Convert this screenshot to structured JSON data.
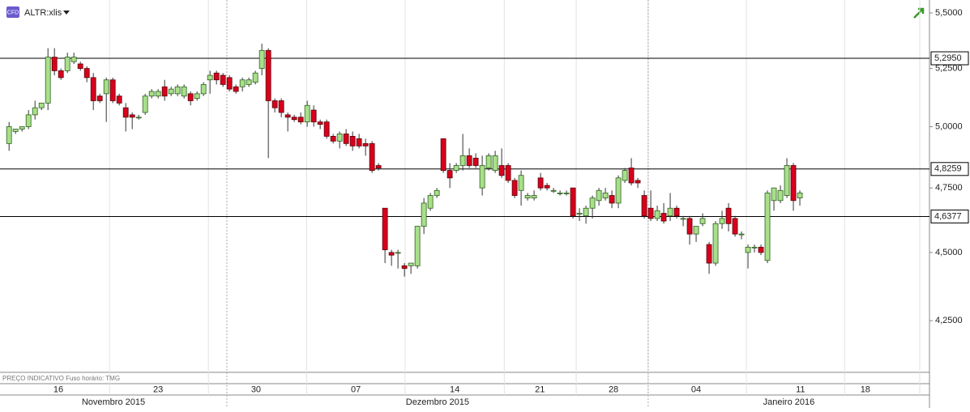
{
  "chart_data": {
    "type": "candlestick",
    "symbol": "ALTR:xlis",
    "badge": "CFD",
    "footnote": "PREÇO INDICATIVO   Fuso horário: TMG",
    "log_scale": true,
    "up_color": "#a8e08a",
    "down_color": "#d8001c",
    "ylim": [
      4.07,
      5.56
    ],
    "yticks": [
      {
        "value": 4.25,
        "label": "4,2500"
      },
      {
        "value": 4.5,
        "label": "4,5000"
      },
      {
        "value": 4.75,
        "label": "4,7500"
      },
      {
        "value": 5.0,
        "label": "5,0000"
      },
      {
        "value": 5.25,
        "label": "5,2500"
      },
      {
        "value": 5.5,
        "label": "5,5000"
      }
    ],
    "levels": [
      {
        "value": 5.295,
        "label": "5,2950"
      },
      {
        "value": 4.8259,
        "label": "4,8259"
      },
      {
        "value": 4.6377,
        "label": "4,6377"
      }
    ],
    "xlim": [
      -1.4,
      142
    ],
    "xticks": [
      {
        "value": 7.6,
        "label": "16"
      },
      {
        "value": 23,
        "label": "23"
      },
      {
        "value": 38.1,
        "label": "30"
      },
      {
        "value": 53.5,
        "label": "07"
      },
      {
        "value": 68.75,
        "label": "14"
      },
      {
        "value": 81.9,
        "label": "21"
      },
      {
        "value": 93.25,
        "label": "28"
      },
      {
        "value": 106,
        "label": "04"
      },
      {
        "value": 122.1,
        "label": "11"
      },
      {
        "value": 132.1,
        "label": "18"
      }
    ],
    "months": [
      "Novembro 2015",
      "Dezembro 2015",
      "Janeiro 2016"
    ],
    "open": [
      4.93,
      4.98,
      4.99,
      5.0,
      5.05,
      5.08,
      5.1,
      5.3,
      5.24,
      5.24,
      5.28,
      5.27,
      5.25,
      5.21,
      5.13,
      5.14,
      5.2,
      5.13,
      5.08,
      5.05,
      5.04,
      5.06,
      5.13,
      5.13,
      5.17,
      5.14,
      5.14,
      5.13,
      5.14,
      5.12,
      5.14,
      5.2,
      5.23,
      5.22,
      5.21,
      5.17,
      5.17,
      5.18,
      5.19,
      5.25,
      5.33,
      5.11,
      5.11,
      5.05,
      5.04,
      5.04,
      5.02,
      5.07,
      5.02,
      5.02,
      4.96,
      4.94,
      4.97,
      4.96,
      4.95,
      4.93,
      4.93,
      4.84,
      4.67,
      4.5,
      4.5,
      4.45,
      4.45,
      4.45,
      4.6,
      4.67,
      4.72,
      4.95,
      4.82,
      4.82,
      4.84,
      4.88,
      4.87,
      4.75,
      4.83,
      4.82,
      4.84,
      4.84,
      4.78,
      4.74,
      4.71,
      4.71,
      4.79,
      4.76,
      4.74,
      4.73,
      4.73,
      4.75,
      4.65,
      4.64,
      4.67,
      4.7,
      4.71,
      4.72,
      4.69,
      4.78,
      4.83,
      4.78,
      4.72,
      4.67,
      4.63,
      4.65,
      4.64,
      4.67,
      4.63,
      4.63,
      4.57,
      4.61,
      4.53,
      4.46,
      4.61,
      4.67,
      4.63,
      4.57,
      4.5,
      4.52,
      4.52,
      4.47,
      4.7,
      4.7,
      4.72,
      4.84,
      4.71
    ],
    "high": [
      5.02,
      4.99,
      5.0,
      5.07,
      5.11,
      5.1,
      5.34,
      5.34,
      5.25,
      5.32,
      5.32,
      5.28,
      5.26,
      5.23,
      5.14,
      5.21,
      5.21,
      5.14,
      5.1,
      5.06,
      5.05,
      5.14,
      5.16,
      5.16,
      5.2,
      5.17,
      5.18,
      5.18,
      5.15,
      5.15,
      5.19,
      5.24,
      5.24,
      5.23,
      5.22,
      5.18,
      5.21,
      5.21,
      5.24,
      5.36,
      5.34,
      5.12,
      5.12,
      5.06,
      5.05,
      5.06,
      5.11,
      5.09,
      5.03,
      5.03,
      4.97,
      4.98,
      4.99,
      4.98,
      4.97,
      4.95,
      4.94,
      4.85,
      4.67,
      4.51,
      4.51,
      4.46,
      4.46,
      4.6,
      4.71,
      4.73,
      4.75,
      4.95,
      4.85,
      4.85,
      4.97,
      4.91,
      4.89,
      4.88,
      4.89,
      4.9,
      4.91,
      4.85,
      4.79,
      4.82,
      4.73,
      4.74,
      4.81,
      4.77,
      4.75,
      4.74,
      4.74,
      4.75,
      4.67,
      4.68,
      4.72,
      4.75,
      4.75,
      4.74,
      4.8,
      4.83,
      4.87,
      4.79,
      4.74,
      4.74,
      4.68,
      4.69,
      4.73,
      4.68,
      4.64,
      4.64,
      4.6,
      4.65,
      4.54,
      4.62,
      4.66,
      4.69,
      4.64,
      4.58,
      4.53,
      4.53,
      4.53,
      4.74,
      4.75,
      4.76,
      4.87,
      4.85,
      4.74
    ],
    "low": [
      4.9,
      4.97,
      4.98,
      4.99,
      5.03,
      5.07,
      5.07,
      5.22,
      5.2,
      5.23,
      5.27,
      5.24,
      5.19,
      5.07,
      5.1,
      5.02,
      5.1,
      5.09,
      4.98,
      4.99,
      5.03,
      5.05,
      5.12,
      5.12,
      5.11,
      5.13,
      5.13,
      5.12,
      5.09,
      5.11,
      5.13,
      5.14,
      5.18,
      5.17,
      5.15,
      5.14,
      5.15,
      5.17,
      5.18,
      5.22,
      4.87,
      5.06,
      5.04,
      4.98,
      5.02,
      5.01,
      5.0,
      5.0,
      4.99,
      4.95,
      4.93,
      4.91,
      4.92,
      4.9,
      4.91,
      4.88,
      4.81,
      4.82,
      4.46,
      4.45,
      4.44,
      4.41,
      4.42,
      4.44,
      4.57,
      4.66,
      4.71,
      4.81,
      4.75,
      4.81,
      4.82,
      4.83,
      4.83,
      4.72,
      4.82,
      4.81,
      4.79,
      4.77,
      4.71,
      4.68,
      4.7,
      4.7,
      4.74,
      4.74,
      4.73,
      4.72,
      4.72,
      4.63,
      4.62,
      4.61,
      4.63,
      4.68,
      4.7,
      4.67,
      4.67,
      4.77,
      4.76,
      4.75,
      4.63,
      4.62,
      4.62,
      4.61,
      4.62,
      4.63,
      4.6,
      4.53,
      4.54,
      4.6,
      4.42,
      4.45,
      4.59,
      4.58,
      4.56,
      4.55,
      4.44,
      4.5,
      4.49,
      4.46,
      4.66,
      4.69,
      4.71,
      4.66,
      4.68
    ],
    "close": [
      5.0,
      4.99,
      5.0,
      5.05,
      5.08,
      5.1,
      5.3,
      5.24,
      5.21,
      5.3,
      5.3,
      5.25,
      5.21,
      5.11,
      5.11,
      5.2,
      5.11,
      5.1,
      5.04,
      5.04,
      5.04,
      5.13,
      5.15,
      5.15,
      5.13,
      5.16,
      5.17,
      5.17,
      5.11,
      5.14,
      5.18,
      5.22,
      5.2,
      5.18,
      5.16,
      5.15,
      5.2,
      5.2,
      5.23,
      5.33,
      5.11,
      5.08,
      5.06,
      5.04,
      5.03,
      5.02,
      5.09,
      5.02,
      5.01,
      4.96,
      4.94,
      4.97,
      4.93,
      4.92,
      4.92,
      4.92,
      4.82,
      4.83,
      4.51,
      4.49,
      4.5,
      4.44,
      4.46,
      4.6,
      4.69,
      4.72,
      4.74,
      4.82,
      4.79,
      4.84,
      4.88,
      4.84,
      4.84,
      4.84,
      4.88,
      4.88,
      4.8,
      4.78,
      4.72,
      4.8,
      4.72,
      4.72,
      4.75,
      4.75,
      4.74,
      4.73,
      4.73,
      4.64,
      4.65,
      4.67,
      4.71,
      4.74,
      4.73,
      4.69,
      4.79,
      4.82,
      4.77,
      4.77,
      4.64,
      4.63,
      4.66,
      4.62,
      4.67,
      4.64,
      4.63,
      4.57,
      4.6,
      4.63,
      4.46,
      4.61,
      4.63,
      4.61,
      4.57,
      4.57,
      4.52,
      4.52,
      4.5,
      4.73,
      4.75,
      4.74,
      4.84,
      4.7,
      4.73
    ]
  }
}
